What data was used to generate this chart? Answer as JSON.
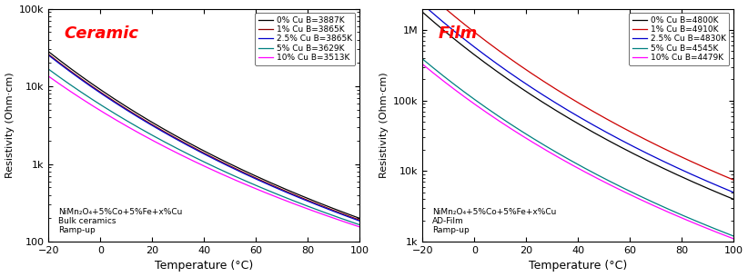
{
  "ceramic": {
    "title": "Ceramic",
    "title_color": "red",
    "annotation": "NiMn₂O₄+5%Co+5%Fe+x%Cu\nBulk ceramics\nRamp-up",
    "xlabel": "Temperature (°C)",
    "ylabel": "Resistivity (Ohm·cm)",
    "xlim": [
      -20,
      100
    ],
    "ylim": [
      100,
      100000
    ],
    "yticks": [
      100,
      1000,
      10000,
      100000
    ],
    "ytick_labels": [
      "100",
      "1k",
      "10k",
      "100k"
    ],
    "series": [
      {
        "label": "0% Cu B=3887K",
        "color": "#000000",
        "B": 3887,
        "rho_ref": 200,
        "T_ref": 373.15
      },
      {
        "label": "1% Cu B=3865K",
        "color": "#8B0000",
        "B": 3865,
        "rho_ref": 190,
        "T_ref": 373.15
      },
      {
        "label": "2.5% Cu B=3865K",
        "color": "#0000CC",
        "B": 3865,
        "rho_ref": 185,
        "T_ref": 373.15
      },
      {
        "label": "5% Cu B=3629K",
        "color": "#008080",
        "B": 3629,
        "rho_ref": 165,
        "T_ref": 373.15
      },
      {
        "label": "10% Cu B=3513K",
        "color": "#FF00FF",
        "B": 3513,
        "rho_ref": 155,
        "T_ref": 373.15
      }
    ]
  },
  "film": {
    "title": "Film",
    "title_color": "red",
    "annotation": "NiMn₂O₄+5%Co+5%Fe+x%Cu\nAD-Film\nRamp-up",
    "xlabel": "Temperature (°C)",
    "ylabel": "Resistivity (Ohm·cm)",
    "xlim": [
      -20,
      100
    ],
    "ylim": [
      1000,
      2000000
    ],
    "yticks": [
      1000,
      10000,
      100000,
      1000000
    ],
    "ytick_labels": [
      "1k",
      "10k",
      "100k",
      "1M"
    ],
    "series": [
      {
        "label": "0% Cu B=4800K",
        "color": "#000000",
        "B": 4800,
        "rho_ref": 4000,
        "T_ref": 373.15
      },
      {
        "label": "1% Cu B=4910K",
        "color": "#CC0000",
        "B": 4910,
        "rho_ref": 7500,
        "T_ref": 373.15
      },
      {
        "label": "2.5% Cu B=4830K",
        "color": "#0000CC",
        "B": 4830,
        "rho_ref": 5000,
        "T_ref": 373.15
      },
      {
        "label": "5% Cu B=4545K",
        "color": "#008080",
        "B": 4545,
        "rho_ref": 1200,
        "T_ref": 373.15
      },
      {
        "label": "10% Cu B=4479K",
        "color": "#FF00FF",
        "B": 4479,
        "rho_ref": 1100,
        "T_ref": 373.15
      }
    ]
  }
}
